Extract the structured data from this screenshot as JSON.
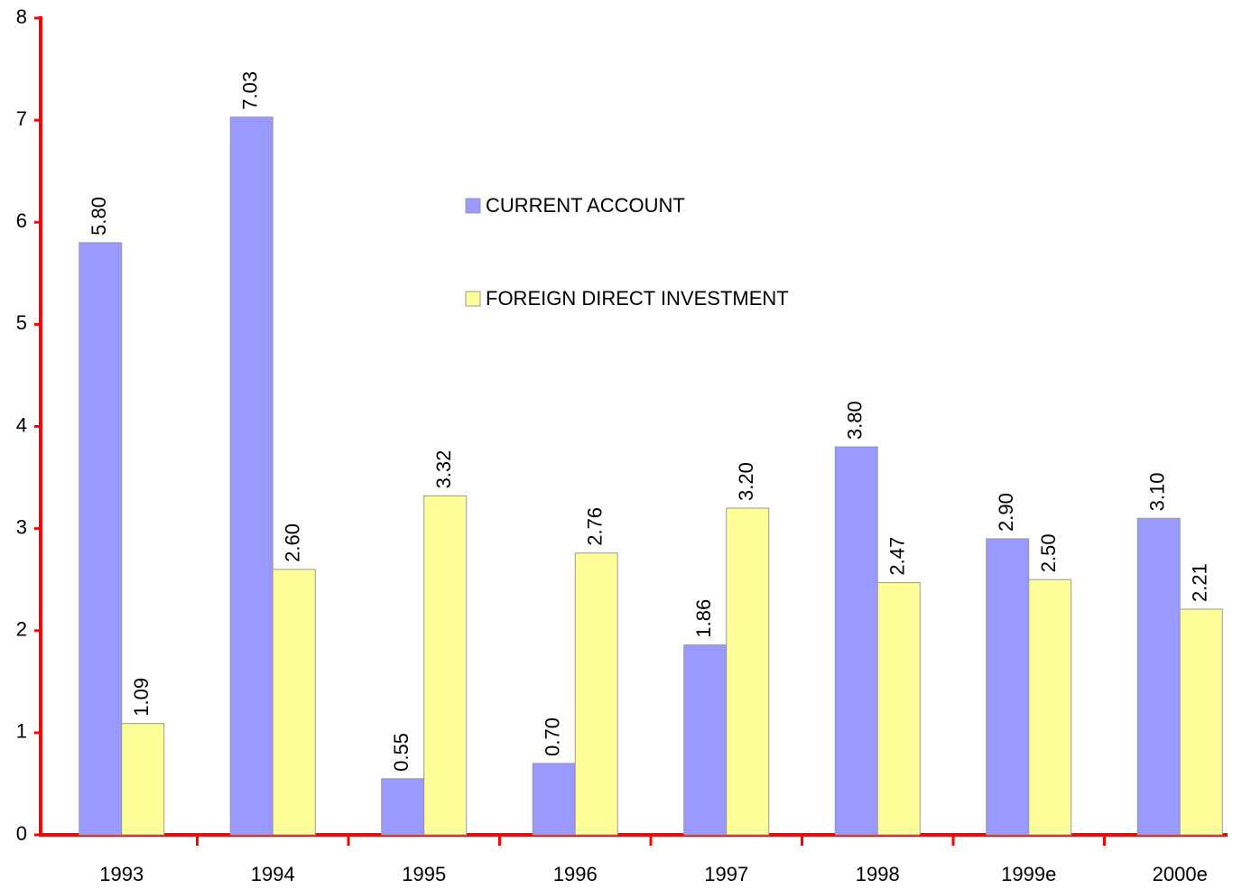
{
  "chart_data": {
    "type": "bar",
    "categories": [
      "1993",
      "1994",
      "1995",
      "1996",
      "1997",
      "1998",
      "1999e",
      "2000e"
    ],
    "series": [
      {
        "name": "CURRENT ACCOUNT",
        "color": "#9999ff",
        "values": [
          5.8,
          7.03,
          0.55,
          0.7,
          1.86,
          3.8,
          2.9,
          3.1
        ],
        "value_labels": [
          "5.80",
          "7.03",
          "0.55",
          "0.70",
          "1.86",
          "3.80",
          "2.90",
          "3.10"
        ]
      },
      {
        "name": "FOREIGN DIRECT INVESTMENT",
        "color": "#ffff99",
        "values": [
          1.09,
          2.6,
          3.32,
          2.76,
          3.2,
          2.47,
          2.5,
          2.21
        ],
        "value_labels": [
          "1.09",
          "2.60",
          "3.32",
          "2.76",
          "3.20",
          "2.47",
          "2.50",
          "2.21"
        ]
      }
    ],
    "ylim": [
      0,
      8
    ],
    "yticks": [
      0,
      1,
      2,
      3,
      4,
      5,
      6,
      7,
      8
    ],
    "grid": false
  }
}
